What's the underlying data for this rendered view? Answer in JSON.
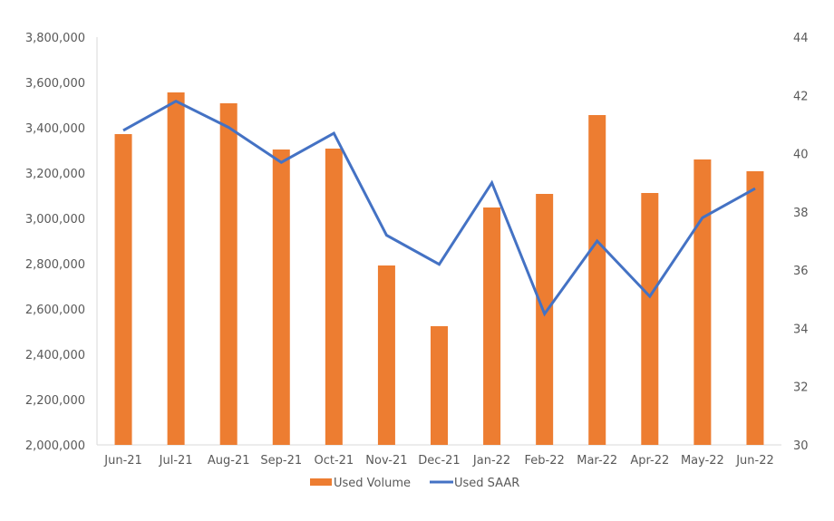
{
  "chart_data": {
    "type": "bar+line",
    "title": "",
    "categories": [
      "Jun-21",
      "Jul-21",
      "Aug-21",
      "Sep-21",
      "Oct-21",
      "Nov-21",
      "Dec-21",
      "Jan-22",
      "Feb-22",
      "Mar-22",
      "Apr-22",
      "May-22",
      "Jun-22"
    ],
    "series": [
      {
        "name": "Used Volume",
        "type": "bar",
        "axis": "left",
        "color": "#ED7D31",
        "values": [
          3372000,
          3556000,
          3508000,
          3304000,
          3308000,
          2792000,
          2524000,
          3048000,
          3108000,
          3456000,
          3112000,
          3260000,
          3208000
        ]
      },
      {
        "name": "Used SAAR",
        "type": "line",
        "axis": "right",
        "color": "#4472C4",
        "values": [
          40.8,
          41.8,
          40.9,
          39.7,
          40.7,
          37.2,
          36.2,
          39.0,
          34.5,
          37.0,
          35.1,
          37.8,
          38.8
        ]
      }
    ],
    "y_left": {
      "min": 2000000,
      "max": 3800000,
      "step": 200000,
      "tick_labels": [
        "2,000,000",
        "2,200,000",
        "2,400,000",
        "2,600,000",
        "2,800,000",
        "3,000,000",
        "3,200,000",
        "3,400,000",
        "3,600,000",
        "3,800,000"
      ]
    },
    "y_right": {
      "min": 30,
      "max": 44,
      "step": 2,
      "tick_labels": [
        "30",
        "32",
        "34",
        "36",
        "38",
        "40",
        "42",
        "44"
      ]
    },
    "xlabel": "",
    "ylabel": "",
    "grid": false,
    "legend_position": "bottom"
  },
  "legend": {
    "items": [
      {
        "label": "Used Volume",
        "color": "#ED7D31",
        "shape": "rect"
      },
      {
        "label": "Used SAAR",
        "color": "#4472C4",
        "shape": "line"
      }
    ]
  }
}
